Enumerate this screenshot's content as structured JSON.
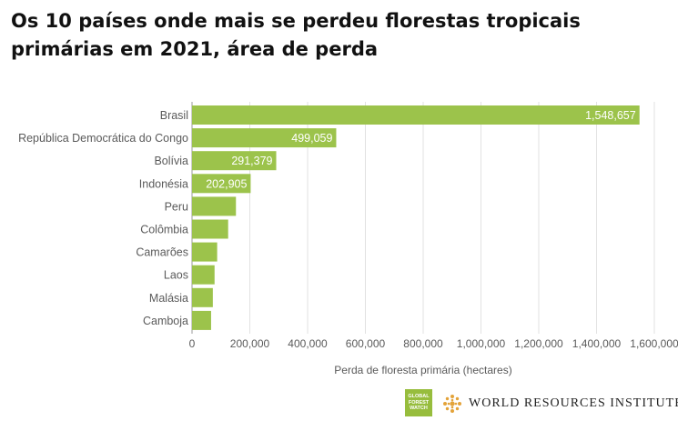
{
  "chart_data": {
    "type": "bar",
    "orientation": "horizontal",
    "title": "Os 10 países onde mais se perdeu florestas tropicais primárias em 2021, área de perda",
    "xlabel": "Perda de floresta primária (hectares)",
    "ylabel": "",
    "categories": [
      "Brasil",
      "República Democrática do Congo",
      "Bolívia",
      "Indonésia",
      "Peru",
      "Colômbia",
      "Camarões",
      "Laos",
      "Malásia",
      "Camboja"
    ],
    "values": [
      1548657,
      499059,
      291379,
      202905,
      152000,
      125000,
      87000,
      78000,
      72000,
      66000
    ],
    "data_labels": [
      "1,548,657",
      "499,059",
      "291,379",
      "202,905",
      "",
      "",
      "",
      "",
      "",
      ""
    ],
    "xlim": [
      0,
      1600000
    ],
    "xticks": [
      0,
      200000,
      400000,
      600000,
      800000,
      1000000,
      1200000,
      1400000,
      1600000
    ],
    "xtick_labels": [
      "0",
      "200,000",
      "400,000",
      "600,000",
      "800,000",
      "1,000,000",
      "1,200,000",
      "1,400,000",
      "1,600,000"
    ],
    "grid": "vertical",
    "bar_color": "#9cc34b"
  },
  "logos": {
    "gfw": {
      "lines": [
        "GLOBAL",
        "FOREST",
        "WATCH"
      ],
      "color": "#97bd3d"
    },
    "wri": {
      "text": "WORLD RESOURCES INSTITUTE",
      "icon": "wri-globe-icon",
      "color": "#e3a33a"
    }
  }
}
